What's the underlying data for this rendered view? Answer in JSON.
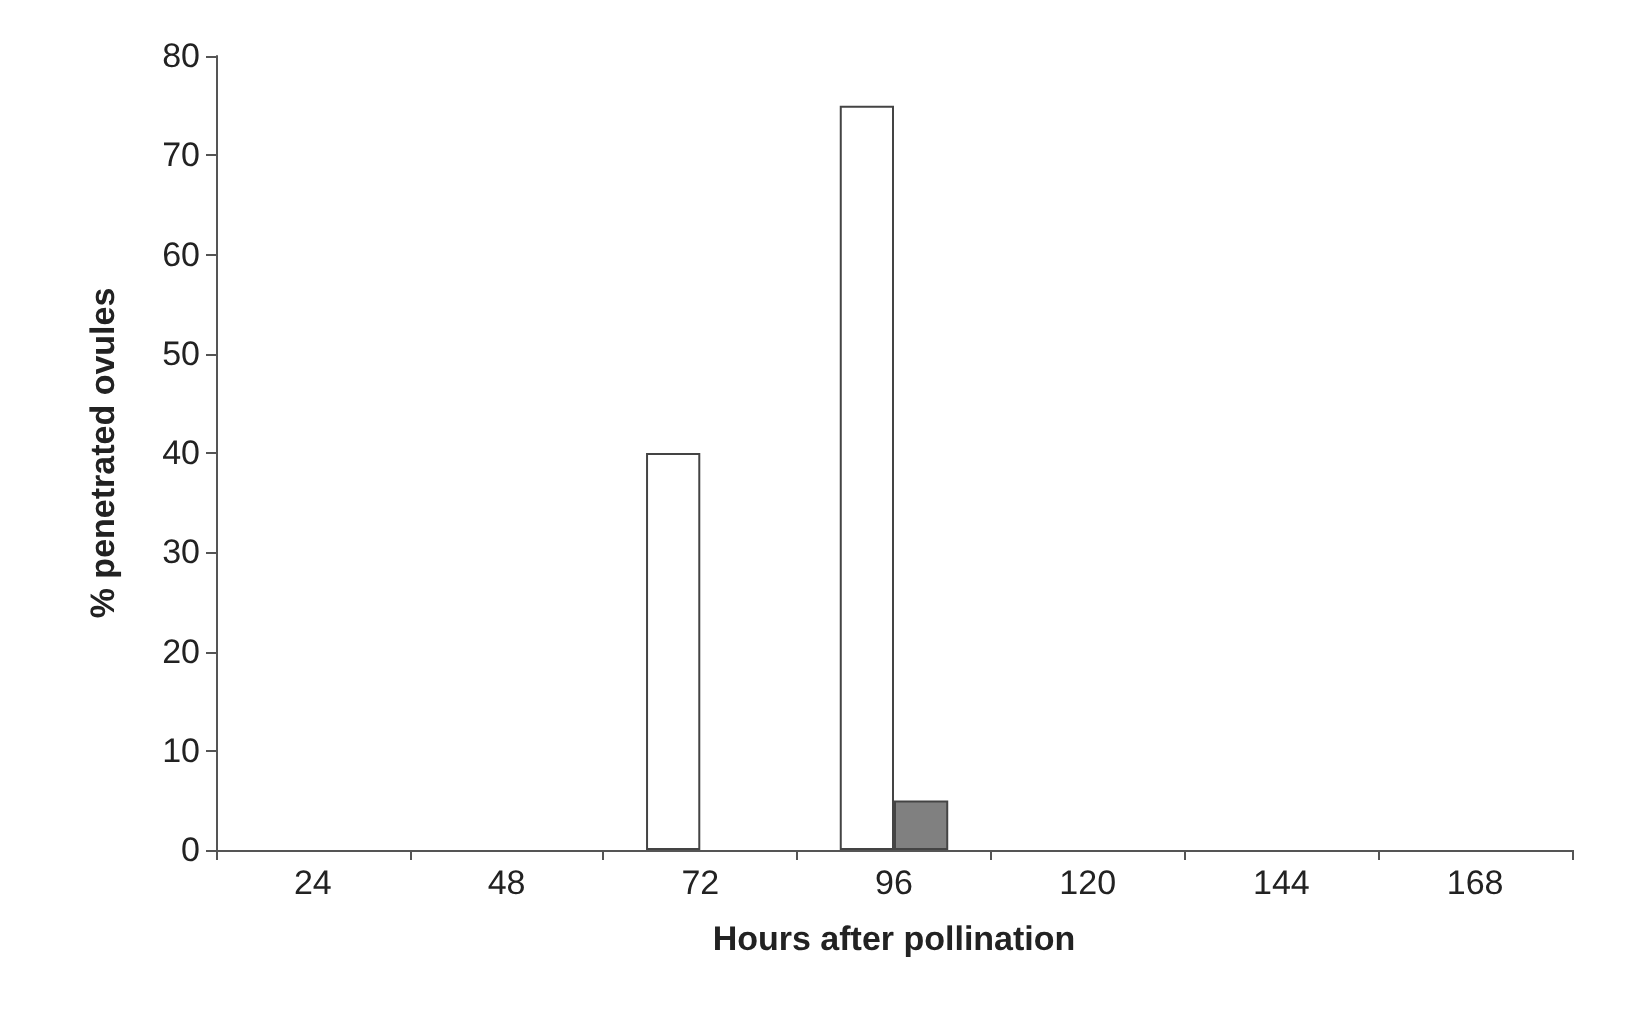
{
  "chart_data": {
    "type": "bar",
    "xlabel": "Hours after pollination",
    "ylabel": "% penetrated ovules",
    "categories": [
      "24",
      "48",
      "72",
      "96",
      "120",
      "144",
      "168"
    ],
    "series": [
      {
        "color": "#ffffff",
        "values": [
          0,
          0,
          40,
          75,
          0,
          0,
          0
        ]
      },
      {
        "color": "#808080",
        "values": [
          0,
          0,
          0,
          5,
          0,
          0,
          0
        ]
      }
    ],
    "ylim": [
      0,
      80
    ],
    "yticks": [
      0,
      10,
      20,
      30,
      40,
      50,
      60,
      70,
      80
    ],
    "grid": false
  }
}
